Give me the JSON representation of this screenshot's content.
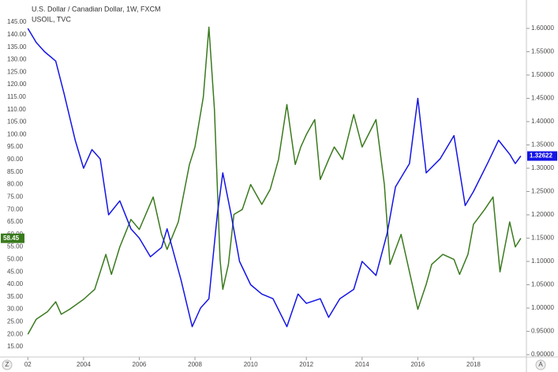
{
  "chart_data": {
    "type": "line",
    "title": "U.S. Dollar / Canadian Dollar, 1W, FXCM",
    "subtitle": "USOIL, TVC",
    "scale_buttons": [
      "Z",
      "A"
    ],
    "grid": false,
    "xlim": [
      2001.0,
      2019.9
    ],
    "xticks": [
      {
        "value": 2002,
        "label": "02"
      },
      2004,
      2006,
      2008,
      2010,
      2012,
      2014,
      2016,
      2018
    ],
    "ylim": [
      10.9,
      152.3
    ],
    "yticks": [
      {
        "value": 15,
        "label": "15.00"
      },
      {
        "value": 20,
        "label": "20.00"
      },
      {
        "value": 25,
        "label": "25.00"
      },
      {
        "value": 30,
        "label": "30.00"
      },
      {
        "value": 35,
        "label": "35.00"
      },
      {
        "value": 40,
        "label": "40.00"
      },
      {
        "value": 45,
        "label": "45.00"
      },
      {
        "value": 50,
        "label": "50.00"
      },
      {
        "value": 55,
        "label": "55.00"
      },
      {
        "value": 60,
        "label": "60.00"
      },
      {
        "value": 65,
        "label": "65.00"
      },
      {
        "value": 70,
        "label": "70.00"
      },
      {
        "value": 75,
        "label": "75.00"
      },
      {
        "value": 80,
        "label": "80.00"
      },
      {
        "value": 85,
        "label": "85.00"
      },
      {
        "value": 90,
        "label": "90.00"
      },
      {
        "value": 95,
        "label": "95.00"
      },
      {
        "value": 100,
        "label": "100.00"
      },
      {
        "value": 105,
        "label": "105.00"
      },
      {
        "value": 110,
        "label": "110.00"
      },
      {
        "value": 115,
        "label": "115.00"
      },
      {
        "value": 120,
        "label": "120.00"
      },
      {
        "value": 125,
        "label": "125.00"
      },
      {
        "value": 130,
        "label": "130.00"
      },
      {
        "value": 135,
        "label": "135.00"
      },
      {
        "value": 140,
        "label": "140.00"
      },
      {
        "value": 145,
        "label": "145.00"
      }
    ],
    "y2lim": [
      0.895,
      1.6525
    ],
    "y2ticks": [
      {
        "value": 0.9,
        "label": "0.90000"
      },
      {
        "value": 0.95,
        "label": "0.95000"
      },
      {
        "value": 1.0,
        "label": "1.00000"
      },
      {
        "value": 1.05,
        "label": "1.05000"
      },
      {
        "value": 1.1,
        "label": "1.10000"
      },
      {
        "value": 1.15,
        "label": "1.15000"
      },
      {
        "value": 1.2,
        "label": "1.20000"
      },
      {
        "value": 1.25,
        "label": "1.25000"
      },
      {
        "value": 1.3,
        "label": "1.30000"
      },
      {
        "value": 1.35,
        "label": "1.35000"
      },
      {
        "value": 1.4,
        "label": "1.40000"
      },
      {
        "value": 1.45,
        "label": "1.45000"
      },
      {
        "value": 1.5,
        "label": "1.50000"
      },
      {
        "value": 1.55,
        "label": "1.55000"
      },
      {
        "value": 1.6,
        "label": "1.60000"
      }
    ],
    "series": [
      {
        "name": "USOIL",
        "color": "#3a7a1e",
        "axis": "y",
        "last_label": "58.45",
        "x": [
          2002.0,
          2002.3,
          2002.7,
          2003.0,
          2003.2,
          2003.5,
          2004.0,
          2004.4,
          2004.8,
          2005.0,
          2005.3,
          2005.7,
          2006.0,
          2006.5,
          2006.8,
          2007.0,
          2007.4,
          2007.8,
          2008.0,
          2008.3,
          2008.5,
          2008.7,
          2008.9,
          2009.0,
          2009.2,
          2009.4,
          2009.7,
          2010.0,
          2010.4,
          2010.7,
          2011.0,
          2011.3,
          2011.6,
          2011.8,
          2012.0,
          2012.3,
          2012.5,
          2012.8,
          2013.0,
          2013.3,
          2013.7,
          2014.0,
          2014.5,
          2014.8,
          2015.0,
          2015.4,
          2015.7,
          2016.0,
          2016.3,
          2016.5,
          2016.9,
          2017.3,
          2017.5,
          2017.8,
          2018.0,
          2018.4,
          2018.7,
          2018.95,
          2019.3,
          2019.5,
          2019.7
        ],
        "values": [
          20,
          26,
          29,
          33,
          28,
          30,
          34,
          38,
          52,
          44,
          55,
          66,
          62,
          75,
          60,
          54,
          65,
          88,
          95,
          115,
          143,
          110,
          50,
          38,
          48,
          68,
          70,
          80,
          72,
          78,
          90,
          112,
          88,
          95,
          100,
          106,
          82,
          90,
          95,
          90,
          108,
          95,
          106,
          80,
          48,
          60,
          45,
          30,
          40,
          48,
          52,
          50,
          44,
          52,
          64,
          70,
          75,
          45,
          65,
          55,
          58.45
        ]
      },
      {
        "name": "U.S. Dollar / Canadian Dollar",
        "color": "#1414e6",
        "axis": "y2",
        "last_label": "1.32622",
        "x": [
          2002.0,
          2002.3,
          2002.6,
          2003.0,
          2003.3,
          2003.7,
          2004.0,
          2004.3,
          2004.6,
          2004.9,
          2005.3,
          2005.7,
          2006.0,
          2006.4,
          2006.8,
          2007.0,
          2007.5,
          2007.9,
          2008.2,
          2008.5,
          2008.8,
          2009.0,
          2009.3,
          2009.6,
          2010.0,
          2010.4,
          2010.8,
          2011.3,
          2011.7,
          2012.0,
          2012.5,
          2012.8,
          2013.2,
          2013.7,
          2014.0,
          2014.5,
          2014.9,
          2015.2,
          2015.7,
          2016.0,
          2016.3,
          2016.8,
          2017.3,
          2017.7,
          2018.0,
          2018.5,
          2018.9,
          2019.3,
          2019.5,
          2019.7
        ],
        "values": [
          1.6,
          1.57,
          1.55,
          1.53,
          1.46,
          1.36,
          1.3,
          1.34,
          1.32,
          1.2,
          1.23,
          1.17,
          1.15,
          1.11,
          1.13,
          1.17,
          1.06,
          0.96,
          1.0,
          1.02,
          1.2,
          1.29,
          1.2,
          1.1,
          1.05,
          1.03,
          1.02,
          0.96,
          1.03,
          1.01,
          1.02,
          0.98,
          1.02,
          1.04,
          1.1,
          1.07,
          1.16,
          1.26,
          1.31,
          1.45,
          1.29,
          1.32,
          1.37,
          1.22,
          1.25,
          1.31,
          1.36,
          1.33,
          1.31,
          1.32622
        ]
      }
    ]
  }
}
